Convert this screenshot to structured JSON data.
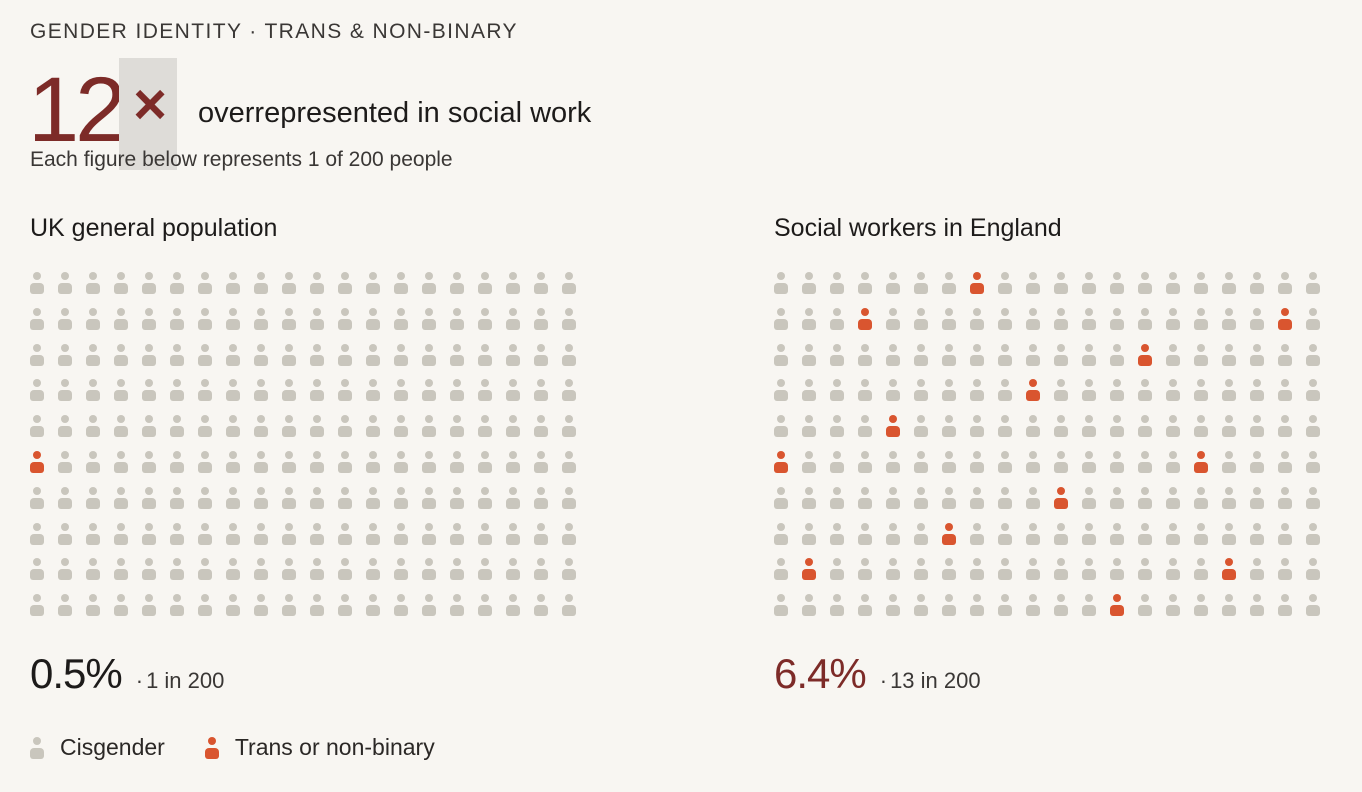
{
  "header": {
    "eyebrow": "GENDER IDENTITY · TRANS & NON-BINARY",
    "big_number": "12",
    "multiplier_glyph": "×",
    "headline_text": "overrepresented in social work",
    "subtitle": "Each figure below represents 1 of 200 people"
  },
  "colors": {
    "background": "#f8f6f2",
    "cisgender": "#c9c6bd",
    "trans": "#d9552f",
    "accent": "#7d2b28",
    "text": "#1d1b1a"
  },
  "chart_data": [
    {
      "type": "pictogram",
      "title": "UK general population",
      "total": 200,
      "rows": 10,
      "columns": 20,
      "highlighted_count": 1,
      "highlighted_positions": [
        [
          5,
          0
        ]
      ],
      "percent_label": "0.5%",
      "ratio_label": "1 in 200",
      "ratio_prefix": "·"
    },
    {
      "type": "pictogram",
      "title": "Social workers in England",
      "total": 200,
      "rows": 10,
      "columns": 20,
      "highlighted_count": 13,
      "highlighted_positions": [
        [
          0,
          7
        ],
        [
          1,
          3
        ],
        [
          1,
          18
        ],
        [
          2,
          13
        ],
        [
          3,
          9
        ],
        [
          4,
          4
        ],
        [
          5,
          0
        ],
        [
          5,
          15
        ],
        [
          6,
          10
        ],
        [
          7,
          6
        ],
        [
          8,
          1
        ],
        [
          8,
          16
        ],
        [
          9,
          12
        ]
      ],
      "percent_label": "6.4%",
      "ratio_label": "13 in 200",
      "ratio_prefix": "·"
    }
  ],
  "legend": {
    "items": [
      {
        "label": "Cisgender",
        "series": "cisgender"
      },
      {
        "label": "Trans or non-binary",
        "series": "trans"
      }
    ]
  }
}
